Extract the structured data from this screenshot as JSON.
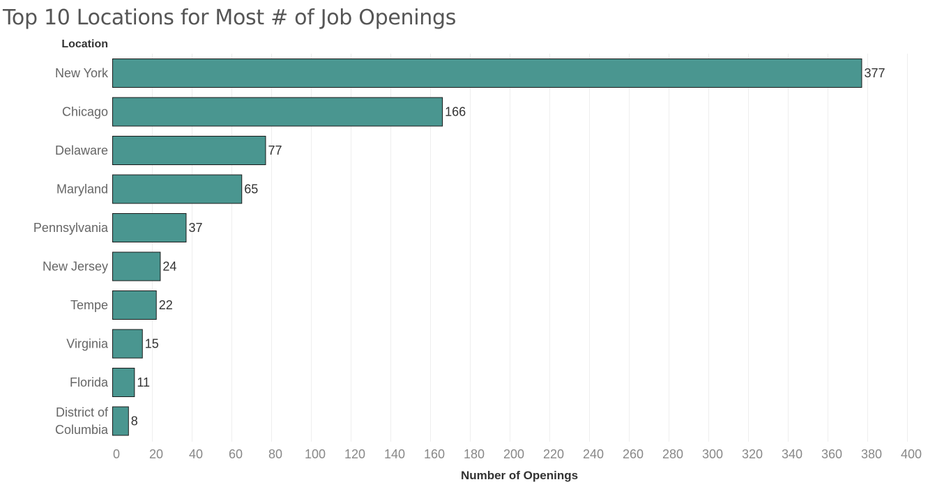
{
  "chart_data": {
    "type": "bar",
    "orientation": "horizontal",
    "title": "Top 10 Locations for Most # of Job Openings",
    "row_header": "Location",
    "xlabel": "Number of Openings",
    "categories": [
      "New York",
      "Chicago",
      "Delaware",
      "Maryland",
      "Pennsylvania",
      "New Jersey",
      "Tempe",
      "Virginia",
      "Florida",
      "District of Columbia"
    ],
    "category_lines": [
      [
        "New York"
      ],
      [
        "Chicago"
      ],
      [
        "Delaware"
      ],
      [
        "Maryland"
      ],
      [
        "Pennsylvania"
      ],
      [
        "New Jersey"
      ],
      [
        "Tempe"
      ],
      [
        "Virginia"
      ],
      [
        "Florida"
      ],
      [
        "District of",
        "Columbia"
      ]
    ],
    "values": [
      377,
      166,
      77,
      65,
      37,
      24,
      22,
      15,
      11,
      8
    ],
    "data_labels": [
      "377",
      "166",
      "77",
      "65",
      "37",
      "24",
      "22",
      "15",
      "11",
      "8"
    ],
    "xlim": [
      0,
      400
    ],
    "xticks": [
      0,
      20,
      40,
      60,
      80,
      100,
      120,
      140,
      160,
      180,
      200,
      220,
      240,
      260,
      280,
      300,
      320,
      340,
      360,
      380,
      400
    ],
    "grid": "vertical",
    "bar_color": "#4a9690",
    "bar_edge_color": "#1a1a1a"
  }
}
